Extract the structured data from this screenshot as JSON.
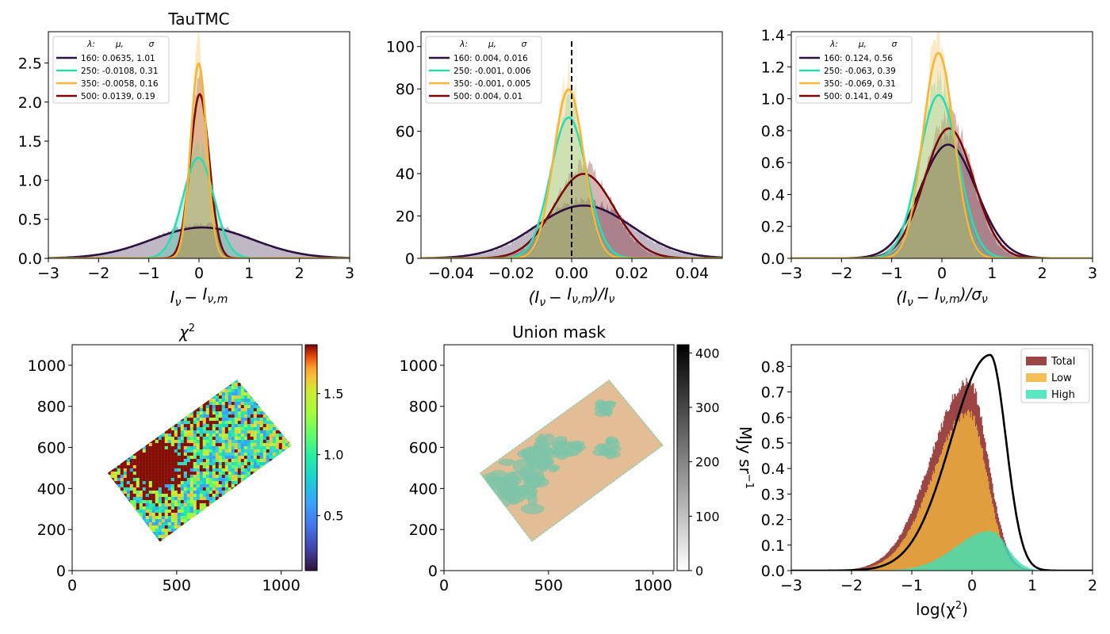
{
  "colors": {
    "c160": "#2d1040",
    "c250": "#2bdcb0",
    "c350": "#f5b638",
    "c500": "#7a0a0a",
    "total": "#8b2525",
    "low": "#f2b43c",
    "high": "#3de0b8"
  },
  "chart_data": [
    {
      "type": "line",
      "title": "TauTMC",
      "xlabel_parts": [
        "I",
        "ν",
        "−",
        "I",
        "ν,m"
      ],
      "xlim": [
        -3,
        3
      ],
      "ylim": [
        0,
        2.9
      ],
      "xticks": [
        "−3",
        "−2",
        "−1",
        "0",
        "1",
        "2",
        "3"
      ],
      "yticks": [
        "0.0",
        "0.5",
        "1.0",
        "1.5",
        "2.0",
        "2.5"
      ],
      "legend": {
        "header": [
          "λ:",
          "μ,",
          "σ"
        ],
        "position": "top-left"
      },
      "series": [
        {
          "name": "160",
          "label": "160: 0.0635,  1.01",
          "mu": 0.0635,
          "sigma": 1.01,
          "color": "c160"
        },
        {
          "name": "250",
          "label": "250: -0.0108,  0.31",
          "mu": -0.0108,
          "sigma": 0.31,
          "color": "c250"
        },
        {
          "name": "350",
          "label": "350: -0.0058,  0.16",
          "mu": -0.0058,
          "sigma": 0.16,
          "color": "c350"
        },
        {
          "name": "500",
          "label": "500: 0.0139,  0.19",
          "mu": 0.0139,
          "sigma": 0.19,
          "color": "c500"
        }
      ]
    },
    {
      "type": "line",
      "title": "",
      "xlabel_parts": [
        "(I",
        "ν",
        "−",
        "I",
        "ν,m",
        ")/I",
        "ν"
      ],
      "xlim": [
        -0.05,
        0.05
      ],
      "ylim": [
        0,
        107
      ],
      "xticks": [
        "−0.04",
        "−0.02",
        "0.00",
        "0.02",
        "0.04"
      ],
      "yticks": [
        "0",
        "20",
        "40",
        "60",
        "80",
        "100"
      ],
      "vline": 0,
      "legend": {
        "header": [
          "λ:",
          "μ,",
          "σ"
        ],
        "position": "top-left"
      },
      "series": [
        {
          "name": "160",
          "label": "160: 0.004,  0.016",
          "mu": 0.004,
          "sigma": 0.016,
          "color": "c160"
        },
        {
          "name": "250",
          "label": "250: -0.001,  0.006",
          "mu": -0.001,
          "sigma": 0.006,
          "color": "c250"
        },
        {
          "name": "350",
          "label": "350: -0.001,  0.005",
          "mu": -0.001,
          "sigma": 0.005,
          "color": "c350"
        },
        {
          "name": "500",
          "label": "500: 0.004,  0.01",
          "mu": 0.004,
          "sigma": 0.01,
          "color": "c500"
        }
      ]
    },
    {
      "type": "line",
      "title": "",
      "xlabel_parts": [
        "(I",
        "ν",
        "−",
        "I",
        "ν,m",
        ")/σ",
        "ν"
      ],
      "xlim": [
        -3,
        3
      ],
      "ylim": [
        0,
        1.42
      ],
      "xticks": [
        "−3",
        "−2",
        "−1",
        "0",
        "1",
        "2",
        "3"
      ],
      "yticks": [
        "0.0",
        "0.2",
        "0.4",
        "0.6",
        "0.8",
        "1.0",
        "1.2",
        "1.4"
      ],
      "legend": {
        "header": [
          "λ:",
          "μ,",
          "σ"
        ],
        "position": "top-left"
      },
      "series": [
        {
          "name": "160",
          "label": "160: 0.124,  0.56",
          "mu": 0.124,
          "sigma": 0.56,
          "color": "c160"
        },
        {
          "name": "250",
          "label": "250: -0.063,  0.39",
          "mu": -0.063,
          "sigma": 0.39,
          "color": "c250"
        },
        {
          "name": "350",
          "label": "350: -0.069,  0.31",
          "mu": -0.069,
          "sigma": 0.31,
          "color": "c350"
        },
        {
          "name": "500",
          "label": "500: 0.141,  0.49",
          "mu": 0.141,
          "sigma": 0.49,
          "color": "c500"
        }
      ]
    },
    {
      "type": "heatmap",
      "title": "χ",
      "title_sup": "2",
      "xlim": [
        0,
        1100
      ],
      "ylim": [
        0,
        1100
      ],
      "xticks": [
        "0",
        "500",
        "1000"
      ],
      "yticks": [
        "0",
        "200",
        "400",
        "600",
        "800",
        "1000"
      ],
      "corners": [
        [
          170,
          475
        ],
        [
          790,
          930
        ],
        [
          1050,
          610
        ],
        [
          420,
          140
        ]
      ],
      "colorbar": {
        "ticks": [
          "0.5",
          "1.0",
          "1.5"
        ],
        "range": [
          0.05,
          1.9
        ],
        "colormap": "turbo"
      }
    },
    {
      "type": "heatmap",
      "title": "Union mask",
      "xlim": [
        0,
        1100
      ],
      "ylim": [
        0,
        1100
      ],
      "xticks": [
        "0",
        "500",
        "1000"
      ],
      "yticks": [
        "0",
        "200",
        "400",
        "600",
        "800",
        "1000"
      ],
      "corners": [
        [
          170,
          475
        ],
        [
          790,
          930
        ],
        [
          1050,
          610
        ],
        [
          420,
          140
        ]
      ],
      "colorbar": {
        "ticks": [
          "0",
          "100",
          "200",
          "300",
          "400"
        ],
        "range": [
          0,
          415
        ],
        "label": "MJy sr",
        "label_sup": "−1",
        "colormap": "gray_r"
      }
    },
    {
      "type": "area",
      "title": "",
      "xlabel": "log(χ",
      "xlabel_sup": "2",
      "xlabel_end": ")",
      "xlim": [
        -3,
        2
      ],
      "ylim": [
        0,
        0.885
      ],
      "xticks": [
        "−3",
        "−2",
        "−1",
        "0",
        "1",
        "2"
      ],
      "yticks": [
        "0.0",
        "0.1",
        "0.2",
        "0.3",
        "0.4",
        "0.5",
        "0.6",
        "0.7",
        "0.8"
      ],
      "legend": {
        "position": "top-right"
      },
      "series": [
        {
          "name": "Total",
          "color": "total",
          "mu": -0.05,
          "sigma": 0.5,
          "peak": 0.74
        },
        {
          "name": "Low",
          "color": "low",
          "mu": -0.05,
          "sigma": 0.48,
          "peak": 0.62
        },
        {
          "name": "High",
          "color": "high",
          "mu": 0.3,
          "sigma": 0.45,
          "peak": 0.155
        }
      ],
      "line": {
        "mu": 0.3,
        "sigma": 0.48,
        "peak": 0.845
      }
    }
  ]
}
